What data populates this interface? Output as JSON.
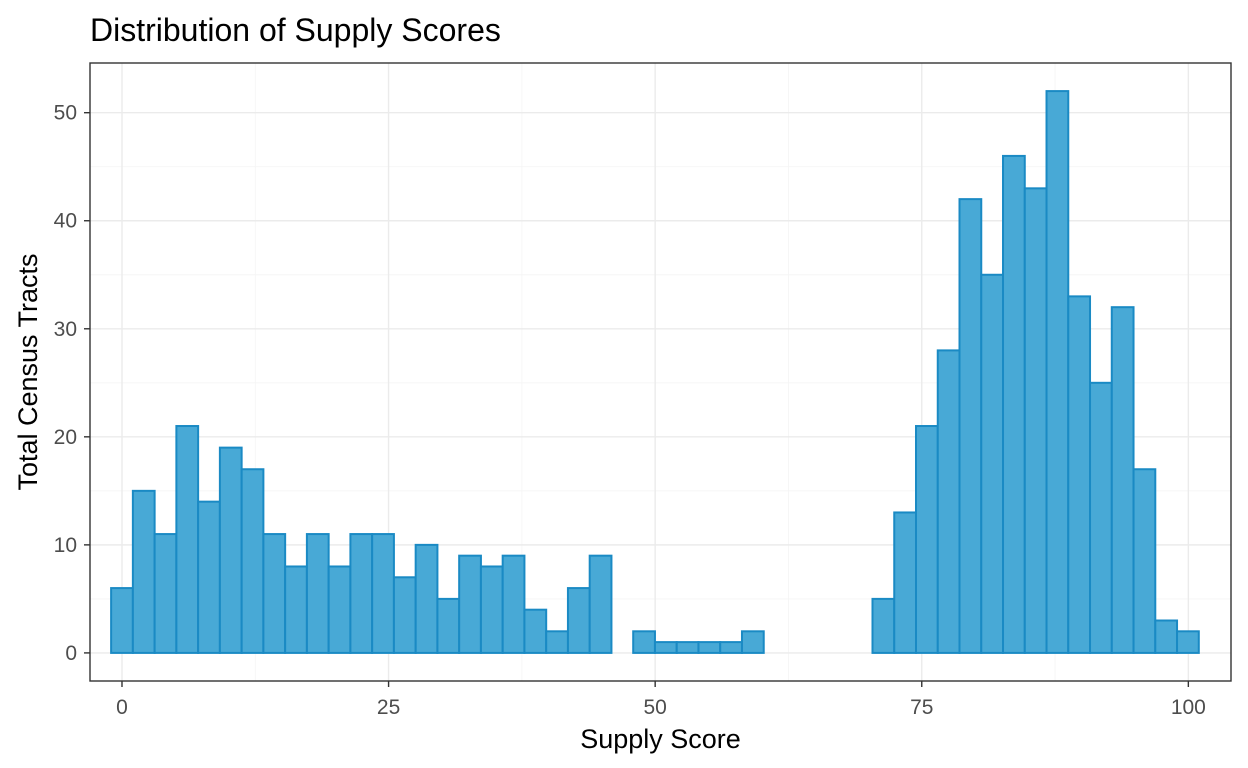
{
  "chart_data": {
    "type": "bar",
    "title": "Distribution of Supply Scores",
    "xlabel": "Supply Score",
    "ylabel": "Total Census Tracts",
    "xlim": [
      -3,
      104
    ],
    "ylim": [
      -2.6,
      54.6
    ],
    "x_ticks": [
      0,
      25,
      50,
      75,
      100
    ],
    "y_ticks": [
      0,
      10,
      20,
      30,
      40,
      50
    ],
    "x_tick_labels": [
      "0",
      "25",
      "50",
      "75",
      "100"
    ],
    "y_tick_labels": [
      "0",
      "10",
      "20",
      "30",
      "40",
      "50"
    ],
    "bin_width": 2.04,
    "bin_start": -1.02,
    "values": [
      6,
      15,
      11,
      21,
      14,
      19,
      17,
      11,
      8,
      11,
      8,
      11,
      11,
      7,
      10,
      5,
      9,
      8,
      9,
      4,
      2,
      6,
      9,
      0,
      2,
      1,
      1,
      1,
      1,
      2,
      0,
      0,
      0,
      0,
      0,
      5,
      13,
      21,
      28,
      42,
      35,
      46,
      43,
      52,
      33,
      25,
      32,
      17,
      3,
      2
    ],
    "grid": true,
    "fill_color": "#48a9d6",
    "edge_color": "#1a8ac4"
  }
}
